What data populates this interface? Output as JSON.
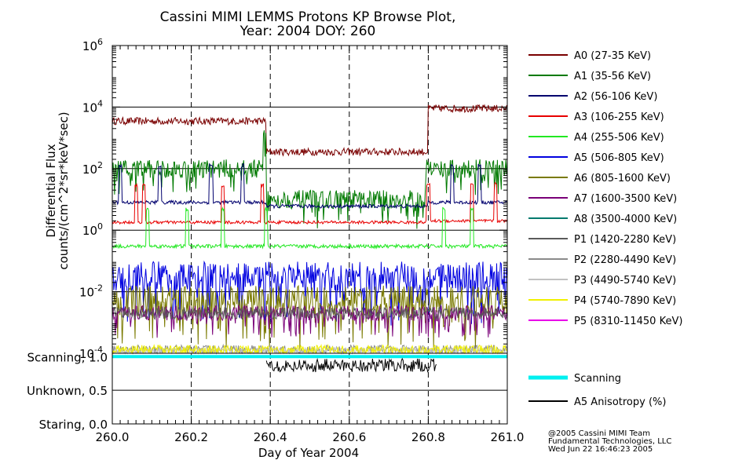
{
  "colors": {
    "A0": "#7a0000",
    "A1": "#007a00",
    "A2": "#00006e",
    "A3": "#e80000",
    "A4": "#22e822",
    "A5": "#0000e0",
    "A6": "#7a7a00",
    "A7": "#7a0078",
    "A8": "#007a6e",
    "P1": "#5a5a5a",
    "P2": "#8a8a8a",
    "P3": "#c2c2c2",
    "P4": "#f0f000",
    "P5": "#e800e8",
    "scanning": "#00f0f0",
    "anisotropy": "#000000"
  },
  "chart_data": {
    "type": "line",
    "title": [
      "Cassini MIMI LEMMS Protons KP Browse Plot,",
      "Year: 2004 DOY: 260"
    ],
    "xlabel": "Day of Year 2004",
    "ylabel": [
      "Differential Flux",
      "counts/(cm^2*sr*keV*sec)"
    ],
    "xlim": [
      260.0,
      261.0
    ],
    "xticks": [
      "260.0",
      "260.2",
      "260.4",
      "260.6",
      "260.8",
      "261.0"
    ],
    "y_scale": "log",
    "ylim": [
      0.0001,
      1000000
    ],
    "yticks": [
      {
        "base": "10",
        "exp": "6"
      },
      {
        "base": "10",
        "exp": "4"
      },
      {
        "base": "10",
        "exp": "2"
      },
      {
        "base": "10",
        "exp": "0"
      },
      {
        "base": "10",
        "exp": "-2"
      },
      {
        "base": "10",
        "exp": "-4"
      }
    ],
    "grid_x_dashed": [
      260.2,
      260.4,
      260.6,
      260.8
    ],
    "grid_y_solid": [
      10000,
      100,
      1,
      0.01
    ],
    "series": [
      {
        "key": "A0",
        "label": "A0 (27-35 KeV)",
        "segments": [
          [
            260.0,
            261.0
          ]
        ],
        "levels": [
          3500,
          350,
          9000
        ],
        "breaks": [
          260.39,
          260.8
        ],
        "noise": 0.12,
        "spikes": []
      },
      {
        "key": "A1",
        "label": "A1 (35-56 KeV)",
        "levels": [
          100,
          10,
          100
        ],
        "breaks": [
          260.39,
          260.8
        ],
        "noise": 0.3,
        "spikes": [
          260.385,
          260.795
        ]
      },
      {
        "key": "A2",
        "label": "A2 (56-106 KeV)",
        "levels": [
          8,
          6,
          8
        ],
        "breaks": [
          260.39,
          260.8
        ],
        "noise": 0.06,
        "spikes": [
          260.02,
          260.12,
          260.25,
          260.33,
          260.86,
          260.93
        ]
      },
      {
        "key": "A3",
        "label": "A3 (106-255 KeV)",
        "levels": [
          1.8,
          1.8,
          2.0
        ],
        "breaks": [
          260.39,
          260.8
        ],
        "noise": 0.05,
        "spikes": [
          260.06,
          260.08,
          260.28,
          260.38,
          260.8,
          260.91,
          260.97
        ]
      },
      {
        "key": "A4",
        "label": "A4 (255-506 KeV)",
        "levels": [
          0.3,
          0.3,
          0.3
        ],
        "breaks": [
          260.39,
          260.8
        ],
        "noise": 0.06,
        "spikes": [
          260.09,
          260.19,
          260.28,
          260.39,
          260.84,
          260.91
        ]
      },
      {
        "key": "A5",
        "label": "A5 (506-805 KeV)",
        "levels": [
          0.03,
          0.03,
          0.03
        ],
        "breaks": [
          260.39,
          260.8
        ],
        "noise": 0.5,
        "spikes": []
      },
      {
        "key": "A6",
        "label": "A6 (805-1600 KeV)",
        "levels": [
          0.005,
          0.005,
          0.005
        ],
        "breaks": [
          260.39,
          260.8
        ],
        "noise": 0.5,
        "spikes": []
      },
      {
        "key": "A7",
        "label": "A7 (1600-3500 KeV)",
        "levels": [
          0.002,
          0.002,
          0.002
        ],
        "breaks": [
          260.39,
          260.8
        ],
        "noise": 0.25,
        "spikes": []
      },
      {
        "key": "A8",
        "label": "A8 (3500-4000 KeV)",
        "levels": [],
        "breaks": [],
        "noise": 0,
        "spikes": []
      },
      {
        "key": "P1",
        "label": "P1 (1420-2280 KeV)",
        "levels": [
          0.002,
          0.002,
          0.002
        ],
        "breaks": [
          260.39,
          260.8
        ],
        "noise": 0.2,
        "spikes": []
      },
      {
        "key": "P2",
        "label": "P2 (2280-4490 KeV)",
        "levels": [
          0.00013,
          0.00013,
          0.00013
        ],
        "breaks": [
          260.39,
          260.8
        ],
        "noise": 0.15,
        "spikes": []
      },
      {
        "key": "P3",
        "label": "P3 (4490-5740 KeV)",
        "levels": [
          0.00012,
          0.00012,
          0.00012
        ],
        "breaks": [
          260.39,
          260.8
        ],
        "noise": 0.1,
        "spikes": []
      },
      {
        "key": "P4",
        "label": "P4 (5740-7890 KeV)",
        "levels": [
          0.00013,
          0.00013,
          0.00013
        ],
        "breaks": [
          260.39,
          260.8
        ],
        "noise": 0.15,
        "spikes": []
      },
      {
        "key": "P5",
        "label": "P5 (8310-11450 KeV)",
        "levels": [],
        "breaks": [],
        "noise": 0,
        "spikes": []
      }
    ],
    "lower_panel": {
      "yticks": [
        "Scanning, 1.0",
        "Unknown, 0.5",
        "Staring, 0.0"
      ],
      "ylim": [
        0.0,
        1.05
      ],
      "series": [
        {
          "key": "scanning",
          "label": "Scanning",
          "value": 1.0
        },
        {
          "key": "anisotropy",
          "label": "A5 Anisotropy (%)",
          "range": [
            260.39,
            260.82
          ],
          "mean": 0.87,
          "spread": 0.1
        }
      ]
    }
  },
  "credit": [
    "@2005 Cassini MIMI Team",
    "Fundamental Technologies, LLC",
    "Wed Jun 22 16:46:23 2005"
  ]
}
